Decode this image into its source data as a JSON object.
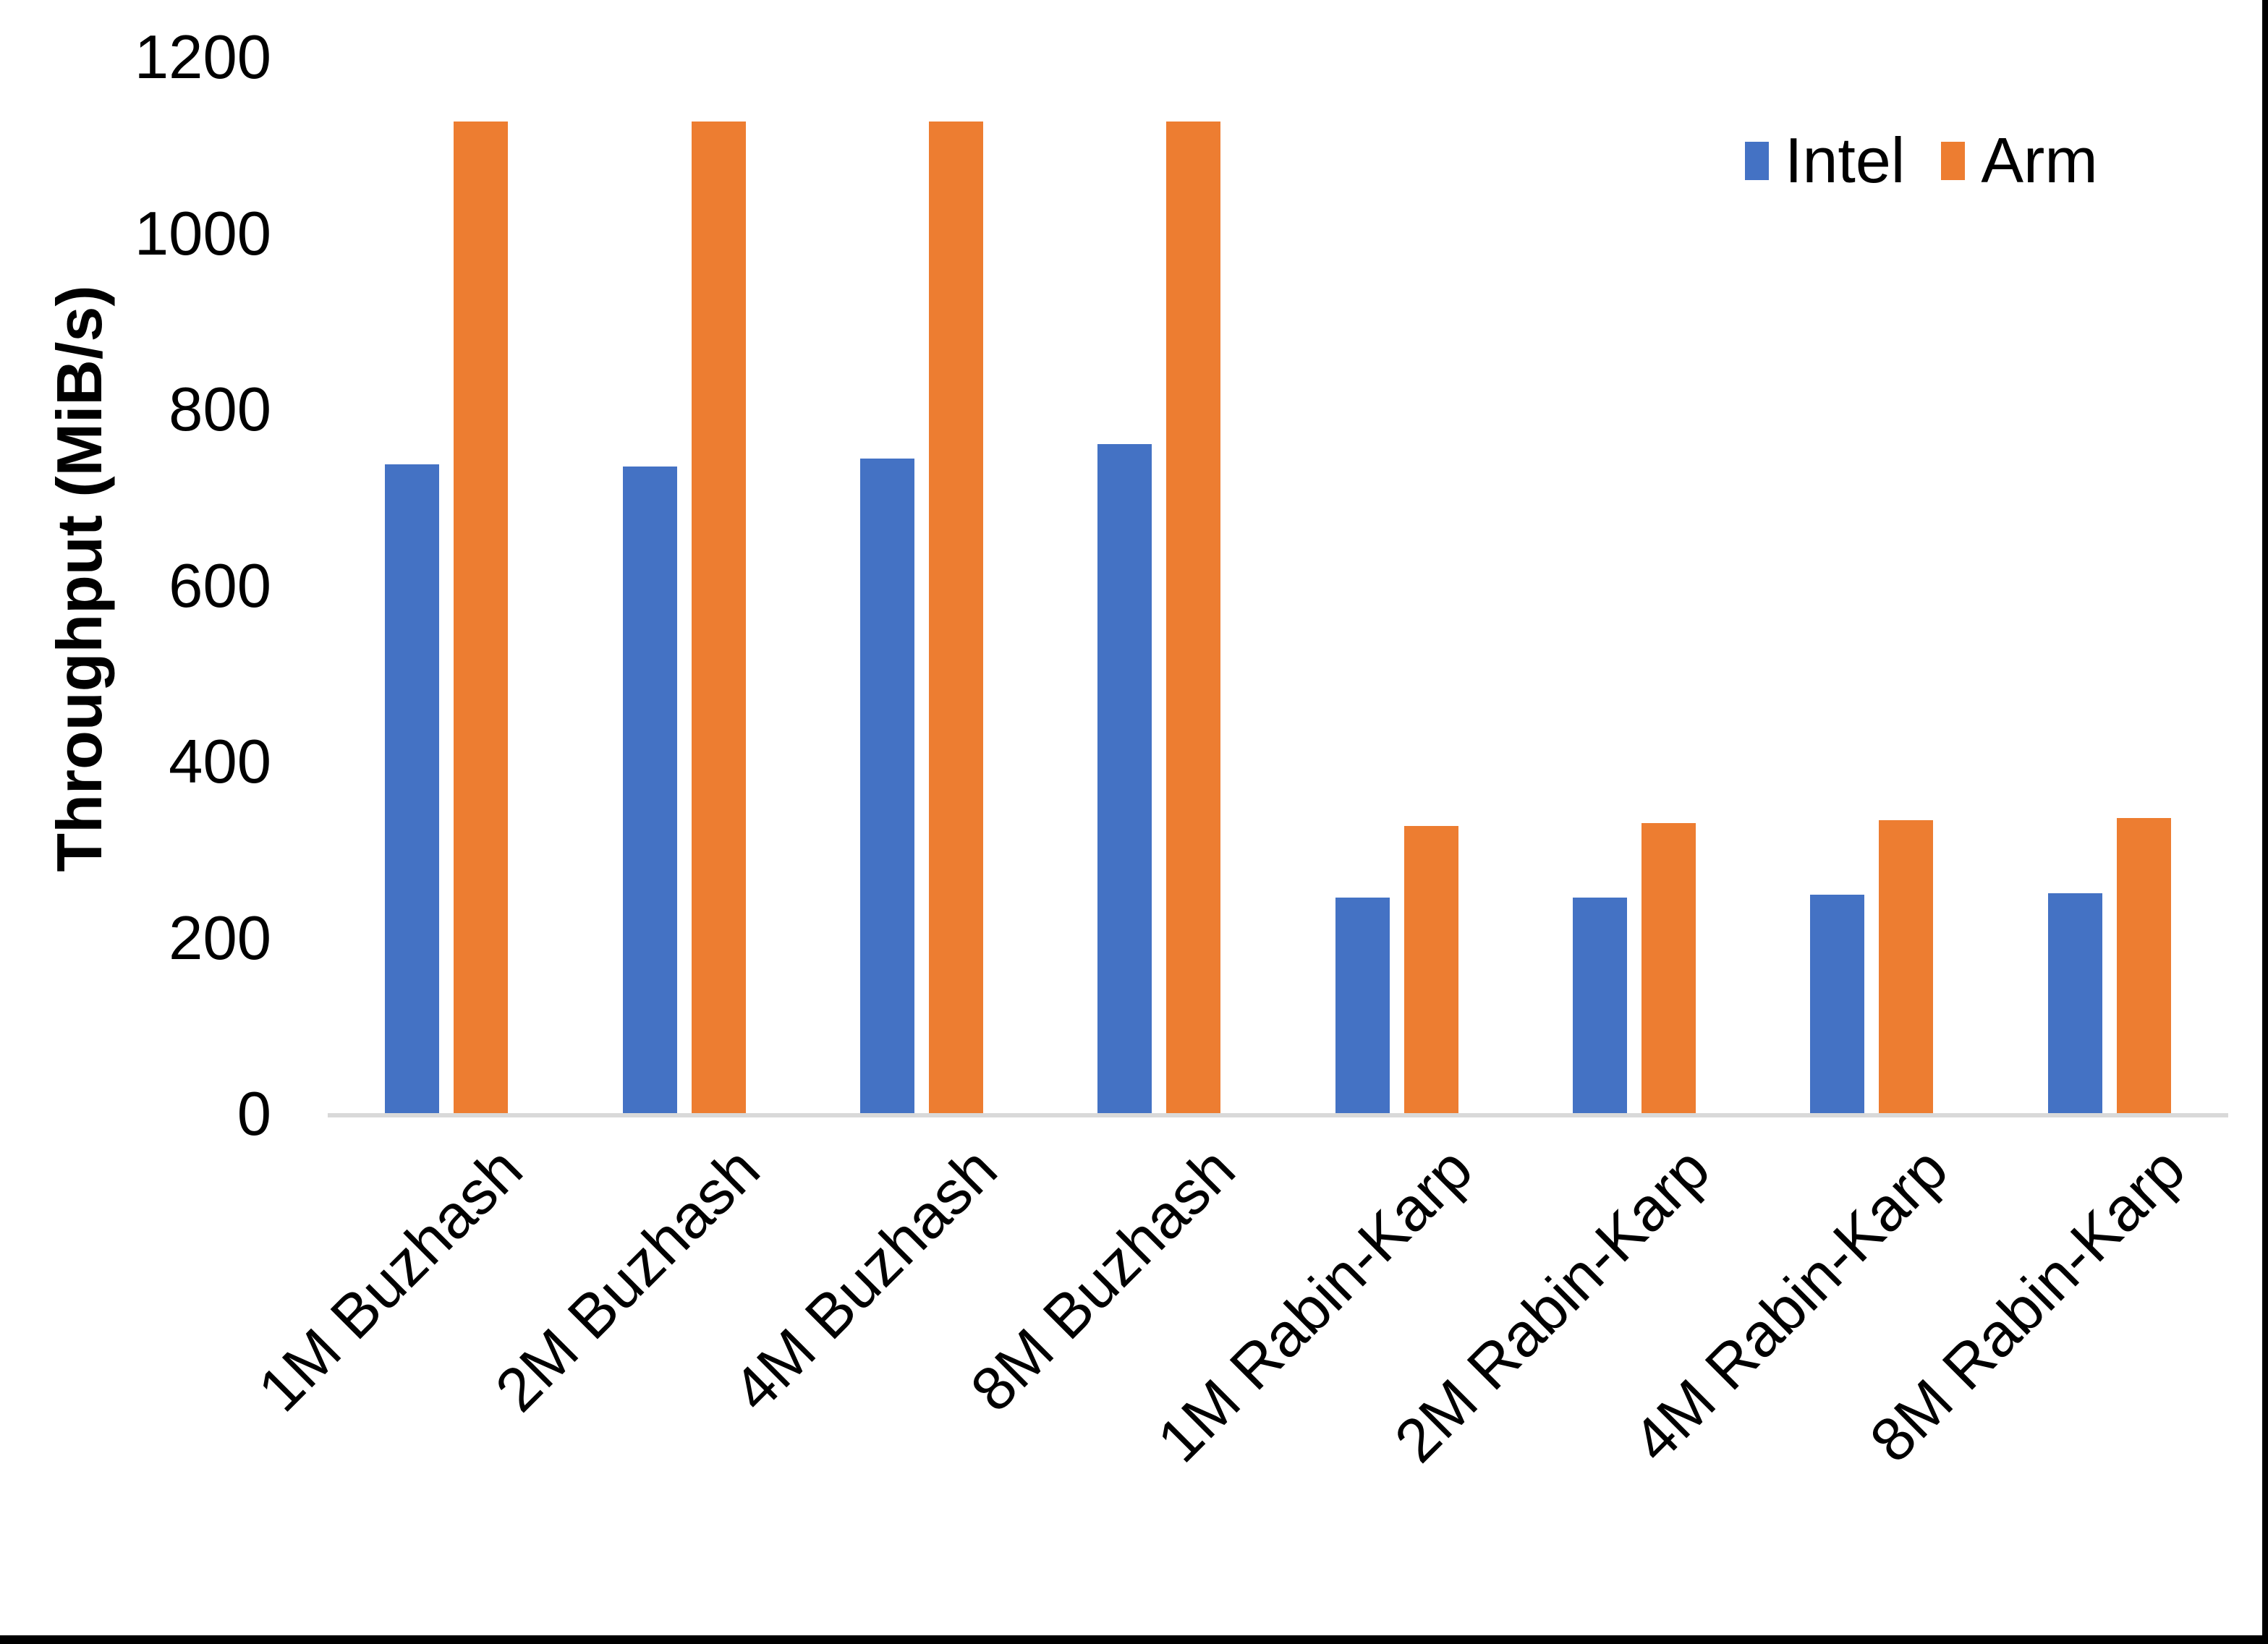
{
  "chart_data": {
    "type": "bar",
    "title": "",
    "xlabel": "",
    "ylabel": "Throughput (MiB/s)",
    "ylim": [
      0,
      1200
    ],
    "yticks": [
      0,
      200,
      400,
      600,
      800,
      1000,
      1200
    ],
    "grid": false,
    "legend_position": "top-right",
    "categories": [
      "1M Buzhash",
      "2M Buzhash",
      "4M Buzhash",
      "8M Buzhash",
      "1M Rabin-Karp",
      "2M Rabin-Karp",
      "4M Rabin-Karp",
      "8M Rabin-Karp"
    ],
    "series": [
      {
        "name": "Intel",
        "color": "#4472C4",
        "values": [
          738,
          736,
          745,
          761,
          246,
          246,
          250,
          251
        ]
      },
      {
        "name": "Arm",
        "color": "#ED7D31",
        "values": [
          1128,
          1128,
          1128,
          1128,
          328,
          331,
          334,
          337
        ]
      }
    ],
    "colors": {
      "axis_line": "#d9d9d9",
      "text": "#000000",
      "background": "#ffffff"
    }
  }
}
